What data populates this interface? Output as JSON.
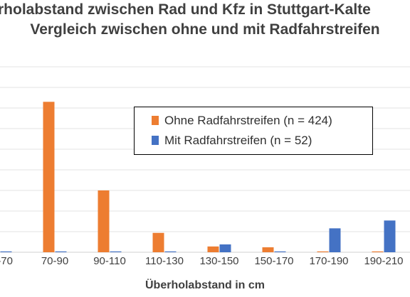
{
  "chart_data": {
    "type": "bar",
    "title": "rholabstand zwischen Rad und Kfz in Stuttgart-Kalte",
    "subtitle": "Vergleich zwischen ohne und mit Radfahrstreifen",
    "xlabel": "Überholabstand in cm",
    "ylabel": "",
    "categories": [
      "-70",
      "70-90",
      "90-110",
      "110-130",
      "130-150",
      "150-170",
      "170-190",
      "190-210"
    ],
    "series": [
      {
        "name": "Ohne Radfahrstreifen (n = 424)",
        "color": "#ed7d31",
        "values": [
          0,
          36.5,
          15,
          4.7,
          1.4,
          1.2,
          0.2,
          0.2
        ]
      },
      {
        "name": "Mit Radfahrstreifen (n = 52)",
        "color": "#4472c4",
        "values": [
          0.2,
          0.2,
          0.2,
          0.2,
          1.9,
          0.2,
          5.8,
          7.7
        ]
      }
    ],
    "ylim": [
      0,
      45
    ],
    "grid": true,
    "legend_position": "top-right"
  }
}
